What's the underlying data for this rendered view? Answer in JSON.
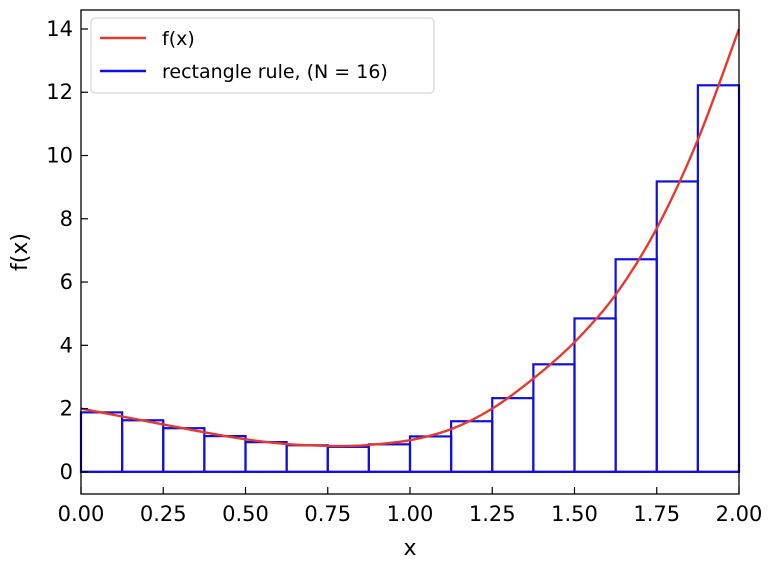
{
  "chart_data": {
    "type": "line",
    "title": "",
    "xlabel": "x",
    "ylabel": "f(x)",
    "xlim": [
      0,
      2
    ],
    "ylim": [
      -0.7,
      14.6
    ],
    "xticks": [
      0,
      0.25,
      0.5,
      0.75,
      1.0,
      1.25,
      1.5,
      1.75,
      2.0
    ],
    "xtick_labels": [
      "0.00",
      "0.25",
      "0.50",
      "0.75",
      "1.00",
      "1.25",
      "1.50",
      "1.75",
      "2.00"
    ],
    "yticks": [
      0,
      2,
      4,
      6,
      8,
      10,
      12,
      14
    ],
    "ytick_labels": [
      "0",
      "2",
      "4",
      "6",
      "8",
      "10",
      "12",
      "14"
    ],
    "grid": false,
    "legend_position": "top-left",
    "series": [
      {
        "name": "f(x)",
        "kind": "line",
        "color": "#e8392c",
        "x": [
          0,
          0.125,
          0.25,
          0.375,
          0.5,
          0.625,
          0.75,
          0.8125,
          0.875,
          1.0,
          1.125,
          1.25,
          1.375,
          1.5,
          1.625,
          1.75,
          1.875,
          2.0
        ],
        "y": [
          2.0,
          1.75,
          1.5,
          1.25,
          1.03,
          0.88,
          0.82,
          0.82,
          0.85,
          1.0,
          1.35,
          2.0,
          2.95,
          4.1,
          5.6,
          7.7,
          10.5,
          14.0
        ]
      },
      {
        "name": "rectangle rule, (N = 16)",
        "kind": "rectangles",
        "color": "#1010e0",
        "bin_edges": [
          0,
          0.125,
          0.25,
          0.375,
          0.5,
          0.625,
          0.75,
          0.875,
          1.0,
          1.125,
          1.25,
          1.375,
          1.5,
          1.625,
          1.75,
          1.875,
          2.0
        ],
        "heights": [
          1.88,
          1.63,
          1.38,
          1.13,
          0.94,
          0.84,
          0.79,
          0.87,
          1.12,
          1.6,
          2.33,
          3.4,
          4.85,
          6.72,
          9.18,
          12.22
        ]
      }
    ]
  }
}
